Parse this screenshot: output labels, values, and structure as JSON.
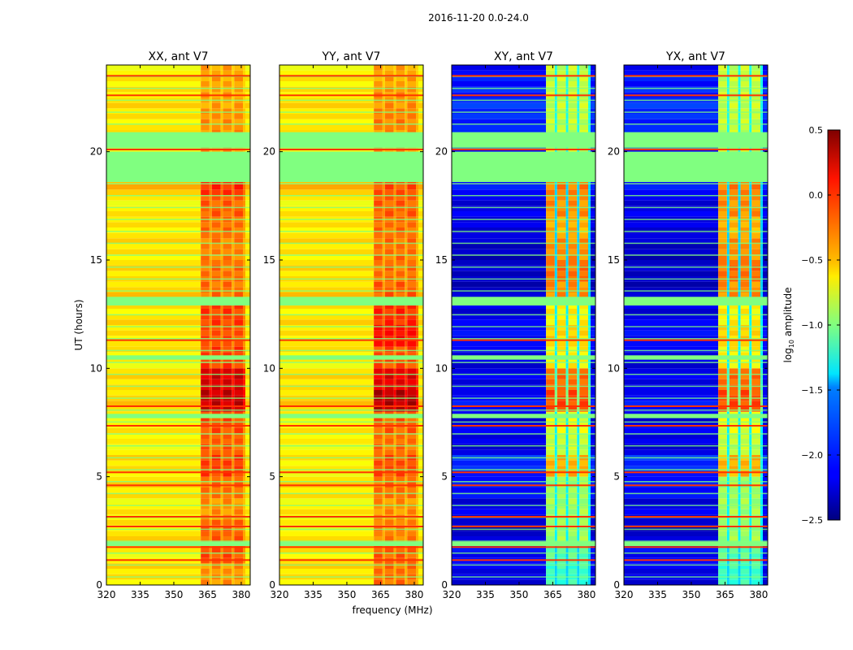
{
  "chart_data": {
    "type": "heatmap",
    "title": "2016-11-20 0.0-24.0",
    "xlabel": "frequency (MHz)",
    "ylabel": "UT (hours)",
    "xlim": [
      320,
      384
    ],
    "ylim": [
      0,
      24
    ],
    "xticks": [
      "320",
      "335",
      "350",
      "365",
      "380"
    ],
    "xtick_values": [
      320,
      335,
      350,
      365,
      380
    ],
    "yticks": [
      "0",
      "5",
      "10",
      "15",
      "20"
    ],
    "ytick_values": [
      0,
      5,
      10,
      15,
      20
    ],
    "colorbar": {
      "label": "log10 amplitude",
      "label_main": "log",
      "label_sub": "10",
      "label_rest": " amplitude",
      "range": [
        -2.5,
        0.5
      ],
      "ticks": [
        "0.5",
        "0.0",
        "−0.5",
        "−1.0",
        "−1.5",
        "−2.0",
        "−2.5"
      ],
      "tick_values": [
        0.5,
        0.0,
        -0.5,
        -1.0,
        -1.5,
        -2.0,
        -2.5
      ],
      "colormap": "jet"
    },
    "masked_color": "#80ff80",
    "flag_color": "#ff3300",
    "rfi_band_start_mhz": 362,
    "flagged_hours": [
      [
        18.6,
        20.0
      ],
      [
        20.2,
        20.9
      ],
      [
        12.9,
        13.3
      ],
      [
        10.4,
        10.6
      ],
      [
        7.7,
        7.9
      ],
      [
        1.8,
        2.0
      ]
    ],
    "flagged_lines_hours": [
      1.15,
      1.75,
      2.7,
      3.15,
      4.6,
      5.2,
      7.35,
      8.25,
      11.3,
      20.1,
      22.6,
      23.5
    ],
    "series": [
      {
        "name": "XX, ant V7",
        "low": [
          -0.55,
          -0.6,
          -0.55,
          -0.6,
          -0.55,
          -0.55,
          -0.6,
          -0.6,
          -0.5,
          -0.55,
          -0.6,
          -0.55,
          -0.55,
          -0.5,
          -0.55,
          -0.55,
          -0.55,
          -0.6,
          -0.45,
          -0.6,
          -0.6,
          -0.55,
          -0.55,
          -0.6
        ],
        "high": [
          -0.3,
          -0.1,
          -0.15,
          -0.3,
          -0.2,
          -0.05,
          -0.15,
          -0.1,
          0.3,
          0.25,
          -0.05,
          -0.1,
          -0.05,
          -0.2,
          -0.2,
          -0.25,
          -0.2,
          -0.15,
          0.0,
          -0.3,
          -0.3,
          -0.3,
          -0.35,
          -0.35
        ],
        "gap": [
          -0.45,
          -0.3,
          -0.35,
          -0.45,
          -0.4,
          -0.3,
          -0.35,
          -0.3,
          0.1,
          0.05,
          -0.25,
          -0.3,
          -0.25,
          -0.4,
          -0.35,
          -0.4,
          -0.35,
          -0.3,
          -0.2,
          -0.45,
          -0.45,
          -0.45,
          -0.5,
          -0.5
        ]
      },
      {
        "name": "YY, ant V7",
        "low": [
          -0.55,
          -0.55,
          -0.6,
          -0.6,
          -0.55,
          -0.6,
          -0.6,
          -0.6,
          -0.5,
          -0.55,
          -0.6,
          -0.55,
          -0.55,
          -0.5,
          -0.55,
          -0.55,
          -0.55,
          -0.6,
          -0.45,
          -0.6,
          -0.6,
          -0.55,
          -0.55,
          -0.6
        ],
        "high": [
          -0.2,
          -0.15,
          -0.25,
          -0.3,
          -0.2,
          -0.1,
          -0.2,
          -0.15,
          0.35,
          0.2,
          -0.1,
          0.1,
          0.0,
          -0.15,
          -0.2,
          -0.2,
          -0.2,
          -0.15,
          -0.1,
          -0.3,
          -0.3,
          -0.25,
          -0.3,
          -0.35
        ],
        "gap": [
          -0.4,
          -0.35,
          -0.4,
          -0.45,
          -0.4,
          -0.3,
          -0.4,
          -0.35,
          0.15,
          0.0,
          -0.3,
          -0.1,
          -0.2,
          -0.35,
          -0.4,
          -0.4,
          -0.35,
          -0.3,
          -0.3,
          -0.45,
          -0.45,
          -0.4,
          -0.45,
          -0.5
        ]
      },
      {
        "name": "XY, ant V7",
        "low": [
          -2.2,
          -2.1,
          -2.3,
          -2.2,
          -2.1,
          -2.0,
          -2.2,
          -2.2,
          -2.1,
          -2.2,
          -2.2,
          -2.1,
          -2.2,
          -2.3,
          -2.3,
          -2.3,
          -2.2,
          -2.2,
          -2.1,
          -2.2,
          -2.1,
          -2.0,
          -2.0,
          -2.1
        ],
        "high": [
          -1.2,
          -1.1,
          -0.9,
          -0.9,
          -0.9,
          -0.4,
          -0.8,
          -0.7,
          -0.1,
          -0.2,
          -0.6,
          -0.5,
          -0.6,
          -0.3,
          -0.2,
          -0.3,
          -0.4,
          -0.3,
          -0.25,
          -0.8,
          -0.8,
          -0.8,
          -0.8,
          -0.8
        ],
        "gap": [
          -1.5,
          -1.5,
          -1.4,
          -1.4,
          -1.4,
          -1.3,
          -1.4,
          -1.4,
          -1.0,
          -1.2,
          -1.4,
          -1.3,
          -1.4,
          -1.5,
          -1.5,
          -1.5,
          -1.5,
          -1.5,
          -1.5,
          -1.3,
          -1.3,
          -1.3,
          -1.3,
          -1.3
        ]
      },
      {
        "name": "YX, ant V7",
        "low": [
          -2.2,
          -2.1,
          -2.3,
          -2.2,
          -2.1,
          -2.0,
          -2.2,
          -2.2,
          -2.1,
          -2.2,
          -2.2,
          -2.1,
          -2.2,
          -2.3,
          -2.3,
          -2.3,
          -2.2,
          -2.2,
          -2.1,
          -2.2,
          -2.1,
          -2.0,
          -2.0,
          -2.1
        ],
        "high": [
          -1.2,
          -1.1,
          -0.9,
          -0.9,
          -0.9,
          -0.4,
          -0.8,
          -0.7,
          -0.1,
          -0.2,
          -0.6,
          -0.5,
          -0.6,
          -0.3,
          -0.2,
          -0.3,
          -0.4,
          -0.3,
          -0.25,
          -0.8,
          -0.8,
          -0.8,
          -0.8,
          -0.8
        ],
        "gap": [
          -1.5,
          -1.5,
          -1.4,
          -1.4,
          -1.4,
          -1.3,
          -1.4,
          -1.4,
          -1.0,
          -1.2,
          -1.4,
          -1.3,
          -1.4,
          -1.5,
          -1.5,
          -1.5,
          -1.5,
          -1.5,
          -1.5,
          -1.3,
          -1.3,
          -1.3,
          -1.3,
          -1.3
        ]
      }
    ]
  }
}
